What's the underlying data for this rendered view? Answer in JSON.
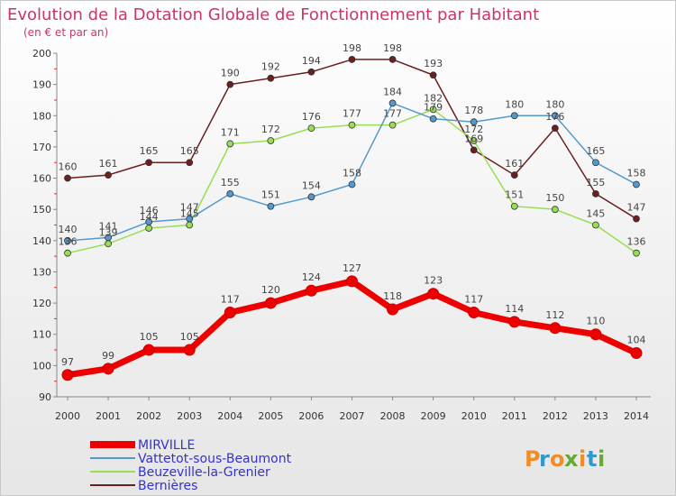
{
  "title": "Evolution de la Dotation Globale de Fonctionnement par Habitant",
  "subtitle": "(en € et par an)",
  "logo": {
    "text": "Proxiti",
    "letters": [
      "P",
      "r",
      "o",
      "x",
      "i",
      "t",
      "i"
    ],
    "colors": [
      "#f28c28",
      "#3399cc",
      "#f28c28",
      "#66aa33",
      "#f28c28",
      "#3399cc",
      "#66aa33"
    ]
  },
  "chart_data": {
    "type": "line",
    "title": "Evolution de la Dotation Globale de Fonctionnement par Habitant",
    "subtitle": "(en € et par an)",
    "xlabel": "",
    "ylabel": "",
    "categories": [
      "2000",
      "2001",
      "2002",
      "2003",
      "2004",
      "2005",
      "2006",
      "2007",
      "2008",
      "2009",
      "2010",
      "2011",
      "2012",
      "2013",
      "2014"
    ],
    "ylim": [
      90,
      200
    ],
    "yticks": [
      90,
      100,
      110,
      120,
      130,
      140,
      150,
      160,
      170,
      180,
      190,
      200
    ],
    "grid": false,
    "legend_position": "bottom-left",
    "series": [
      {
        "name": "Bernières",
        "color": "#6b1f1f",
        "values": [
          160,
          161,
          165,
          165,
          190,
          192,
          194,
          198,
          198,
          193,
          169,
          161,
          176,
          155,
          147
        ],
        "width": "thin"
      },
      {
        "name": "Beuzeville-la-Grenier",
        "color": "#99dd55",
        "values": [
          136,
          139,
          144,
          145,
          171,
          172,
          176,
          177,
          177,
          182,
          172,
          151,
          150,
          145,
          136
        ],
        "width": "thin"
      },
      {
        "name": "Vattetot-sous-Beaumont",
        "color": "#5599cc",
        "values": [
          140,
          141,
          146,
          147,
          155,
          151,
          154,
          158,
          184,
          179,
          178,
          180,
          180,
          165,
          158
        ],
        "width": "thin"
      },
      {
        "name": "MIRVILLE",
        "color": "#ee0000",
        "values": [
          97,
          99,
          105,
          105,
          117,
          120,
          124,
          127,
          118,
          123,
          117,
          114,
          112,
          110,
          104
        ],
        "width": "thick"
      }
    ],
    "legend_order": [
      "MIRVILLE",
      "Vattetot-sous-Beaumont",
      "Beuzeville-la-Grenier",
      "Bernières"
    ]
  }
}
